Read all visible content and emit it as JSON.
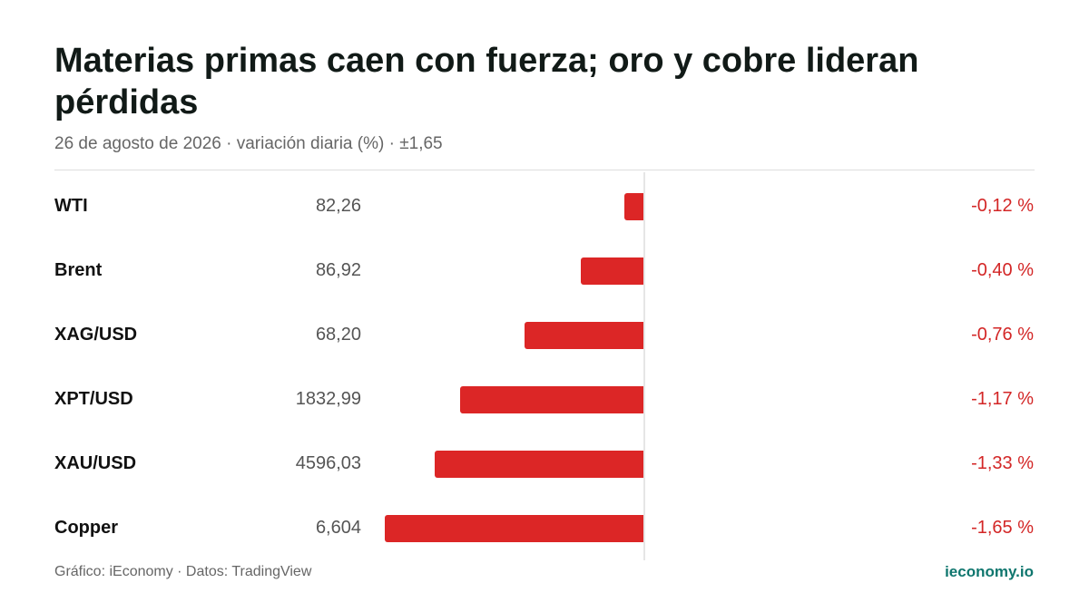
{
  "header": {
    "title": "Materias primas caen con fuerza; oro y cobre lideran pérdidas",
    "subtitle": "26 de agosto de 2026 · variación diaria (%) · ±1,65"
  },
  "footer": {
    "source": "Gráfico: iEconomy · Datos: TradingView",
    "brand": "ieconomy.io"
  },
  "colors": {
    "negative": "#dc2626",
    "brand": "#0f766e"
  },
  "chart_data": {
    "type": "bar",
    "orientation": "horizontal",
    "categories": [
      "WTI",
      "Brent",
      "XAG/USD",
      "XPT/USD",
      "XAU/USD",
      "Copper"
    ],
    "prices": [
      "82,26",
      "86,92",
      "68,20",
      "1832,99",
      "4596,03",
      "6,604"
    ],
    "values": [
      -0.12,
      -0.4,
      -0.76,
      -1.17,
      -1.33,
      -1.65
    ],
    "value_labels": [
      "-0,12 %",
      "-0,40 %",
      "-0,76 %",
      "-1,17 %",
      "-1,33 %",
      "-1,65 %"
    ],
    "xlim": [
      -1.65,
      1.65
    ],
    "grid": false,
    "legend": "none"
  }
}
